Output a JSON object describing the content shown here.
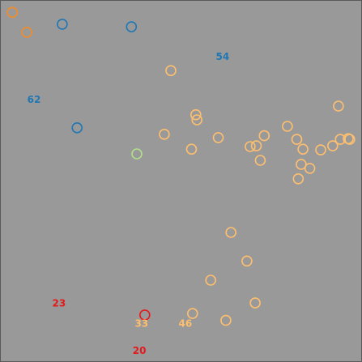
{
  "colors": {
    "background": "#999999",
    "frame": "#5a5a5a",
    "orange": "#f28c28",
    "blue": "#1f77b4",
    "light_orange": "#fdbf6f",
    "green": "#b2df8a",
    "red": "#e31a1c"
  },
  "chart_data": {
    "type": "scatter",
    "title": "",
    "xlabel": "",
    "ylabel": "",
    "axes_visible": false,
    "grid": false,
    "xlim": [
      0,
      100
    ],
    "ylim": [
      0,
      100
    ],
    "series": [
      {
        "color_key": "orange",
        "points": [
          [
            3.4,
            96.6
          ],
          [
            7.4,
            91.1
          ]
        ]
      },
      {
        "color_key": "blue",
        "points": [
          [
            17.2,
            93.3
          ],
          [
            36.3,
            92.6
          ],
          [
            21.3,
            64.7
          ]
        ]
      },
      {
        "color_key": "light_orange",
        "points": [
          [
            47.2,
            80.5
          ],
          [
            54.1,
            68.3
          ],
          [
            54.4,
            66.9
          ],
          [
            45.4,
            62.9
          ],
          [
            60.3,
            62.0
          ],
          [
            52.9,
            58.8
          ],
          [
            73.0,
            62.5
          ],
          [
            70.8,
            59.7
          ],
          [
            69.1,
            59.5
          ],
          [
            71.9,
            55.7
          ],
          [
            79.4,
            65.1
          ],
          [
            82.0,
            61.5
          ],
          [
            83.7,
            58.8
          ],
          [
            88.6,
            58.6
          ],
          [
            91.9,
            59.7
          ],
          [
            94.0,
            61.5
          ],
          [
            96.2,
            61.7
          ],
          [
            96.6,
            61.5
          ],
          [
            93.5,
            70.7
          ],
          [
            83.2,
            54.6
          ],
          [
            85.6,
            53.5
          ],
          [
            82.4,
            50.6
          ],
          [
            63.8,
            35.8
          ],
          [
            68.2,
            27.9
          ],
          [
            58.2,
            22.6
          ],
          [
            70.5,
            16.3
          ],
          [
            53.2,
            13.4
          ],
          [
            62.4,
            11.5
          ]
        ]
      },
      {
        "color_key": "green",
        "points": [
          [
            37.8,
            57.5
          ]
        ]
      },
      {
        "color_key": "red",
        "points": [
          [
            40.0,
            13.0
          ]
        ]
      }
    ],
    "annotations": [
      {
        "text": "54",
        "x": 61.5,
        "y": 84.2,
        "color_key": "blue"
      },
      {
        "text": "62",
        "x": 9.4,
        "y": 72.4,
        "color_key": "blue"
      },
      {
        "text": "23",
        "x": 16.3,
        "y": 16.1,
        "color_key": "red"
      },
      {
        "text": "33",
        "x": 39.1,
        "y": 10.5,
        "color_key": "light_orange"
      },
      {
        "text": "46",
        "x": 51.2,
        "y": 10.5,
        "color_key": "light_orange"
      },
      {
        "text": "20",
        "x": 38.5,
        "y": 3.0,
        "color_key": "red"
      }
    ]
  }
}
